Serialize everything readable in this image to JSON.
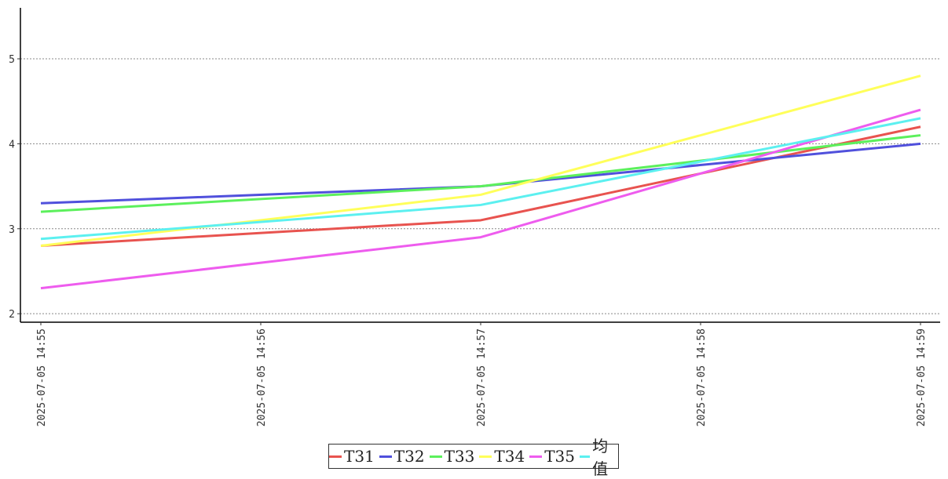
{
  "chart_data": {
    "type": "line",
    "x": [
      "2025-07-05 14:55",
      "2025-07-05 14:56",
      "2025-07-05 14:57",
      "2025-07-05 14:58",
      "2025-07-05 14:59"
    ],
    "title": "",
    "xlabel": "",
    "ylabel": "",
    "ylim": [
      1.9,
      5.6
    ],
    "yticks": [
      2,
      3,
      4,
      5
    ],
    "grid": "horizontal dashed",
    "legend_position": "bottom",
    "series": [
      {
        "name": "T31",
        "color": "#e8534f",
        "points": [
          {
            "x": "2025-07-05 14:55",
            "y": 2.8
          },
          {
            "x": "2025-07-05 14:57",
            "y": 3.1
          },
          {
            "x": "2025-07-05 14:59",
            "y": 4.2
          }
        ]
      },
      {
        "name": "T32",
        "color": "#5050dc",
        "points": [
          {
            "x": "2025-07-05 14:55",
            "y": 3.3
          },
          {
            "x": "2025-07-05 14:57",
            "y": 3.5
          },
          {
            "x": "2025-07-05 14:59",
            "y": 4.0
          }
        ]
      },
      {
        "name": "T33",
        "color": "#5cf05c",
        "points": [
          {
            "x": "2025-07-05 14:55",
            "y": 3.2
          },
          {
            "x": "2025-07-05 14:57",
            "y": 3.5
          },
          {
            "x": "2025-07-05 14:59",
            "y": 4.1
          }
        ]
      },
      {
        "name": "T34",
        "color": "#ffff5a",
        "points": [
          {
            "x": "2025-07-05 14:55",
            "y": 2.8
          },
          {
            "x": "2025-07-05 14:57",
            "y": 3.4
          },
          {
            "x": "2025-07-05 14:59",
            "y": 4.8
          }
        ]
      },
      {
        "name": "T35",
        "color": "#ee5cee",
        "points": [
          {
            "x": "2025-07-05 14:55",
            "y": 2.3
          },
          {
            "x": "2025-07-05 14:57",
            "y": 2.9
          },
          {
            "x": "2025-07-05 14:59",
            "y": 4.4
          }
        ]
      },
      {
        "name": "均值",
        "color": "#5cf0f0",
        "points": [
          {
            "x": "2025-07-05 14:55",
            "y": 2.88
          },
          {
            "x": "2025-07-05 14:57",
            "y": 3.28
          },
          {
            "x": "2025-07-05 14:59",
            "y": 4.3
          }
        ]
      }
    ]
  }
}
